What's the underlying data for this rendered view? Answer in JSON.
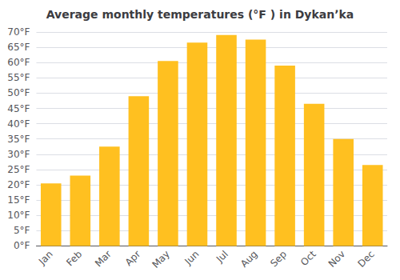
{
  "chart_data": {
    "type": "bar",
    "title": "Average monthly temperatures (°F ) in Dykanʼka",
    "categories": [
      "Jan",
      "Feb",
      "Mar",
      "Apr",
      "May",
      "Jun",
      "Jul",
      "Aug",
      "Sep",
      "Oct",
      "Nov",
      "Dec"
    ],
    "values": [
      20.5,
      23.0,
      32.5,
      49.0,
      60.5,
      66.5,
      69.0,
      67.5,
      59.0,
      46.5,
      35.0,
      26.5
    ],
    "color": "#FFC020",
    "ylim": [
      0,
      70
    ],
    "yticks": [
      {
        "value": 0,
        "label": "0°F"
      },
      {
        "value": 5,
        "label": "5°F"
      },
      {
        "value": 10,
        "label": "10°F"
      },
      {
        "value": 15,
        "label": "15°F"
      },
      {
        "value": 20,
        "label": "20°F"
      },
      {
        "value": 25,
        "label": "25°F"
      },
      {
        "value": 30,
        "label": "30°F"
      },
      {
        "value": 35,
        "label": "35°F"
      },
      {
        "value": 40,
        "label": "40°F"
      },
      {
        "value": 45,
        "label": "45°F"
      },
      {
        "value": 50,
        "label": "50°F"
      },
      {
        "value": 55,
        "label": "55°F"
      },
      {
        "value": 60,
        "label": "60°F"
      },
      {
        "value": 65,
        "label": "65°F"
      },
      {
        "value": 70,
        "label": "70°F"
      }
    ],
    "grid": true
  }
}
